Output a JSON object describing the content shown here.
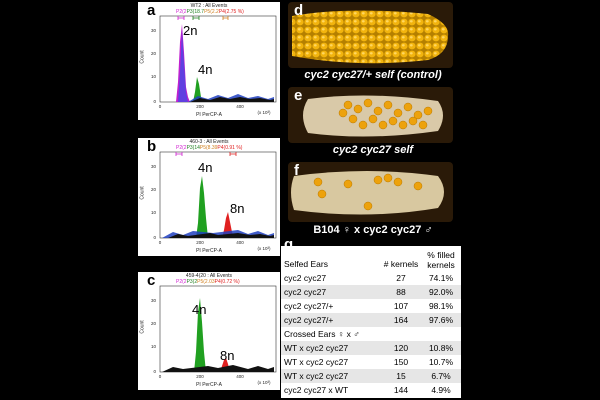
{
  "panels": {
    "a": {
      "letter": "a",
      "title": "WT2 : All Events",
      "xlabel": "PI PerCP-A",
      "ylabel": "Count",
      "peak1": "2n",
      "peak2": "4n",
      "gates": [
        {
          "t": "P2(2",
          "c": "#d020d0"
        },
        {
          "t": "P3(18.7",
          "c": "#208020"
        },
        {
          "t": "P5(2.2",
          "c": "#d08020"
        },
        {
          "t": "P4(2.75 %)",
          "c": "#e02020"
        }
      ],
      "yticks": [
        "30",
        "20",
        "10",
        "0"
      ],
      "xticks": [
        "0",
        "200",
        "400"
      ],
      "xunit": "(x 10³)"
    },
    "b": {
      "letter": "b",
      "title": "460-3 : All Events",
      "xlabel": "PI PerCP-A",
      "ylabel": "Count",
      "peak1": "4n",
      "peak2": "8n",
      "gates": [
        {
          "t": "P2(2",
          "c": "#d020d0"
        },
        {
          "t": "P3(14",
          "c": "#208020"
        },
        {
          "t": "P5(8.39",
          "c": "#d08020"
        },
        {
          "t": "P4(0.91 %)",
          "c": "#e02020"
        }
      ],
      "yticks": [
        "30",
        "20",
        "10",
        "0"
      ],
      "xticks": [
        "0",
        "200",
        "400"
      ],
      "xunit": "(x 10³)"
    },
    "c": {
      "letter": "c",
      "title": "459-4(20 : All Events",
      "xlabel": "PI PerCP-A",
      "ylabel": "Count",
      "peak1": "4n",
      "peak2": "8n",
      "gates": [
        {
          "t": "P2(2",
          "c": "#d020d0"
        },
        {
          "t": "P3(2",
          "c": "#208020"
        },
        {
          "t": "P5(2.03",
          "c": "#d08020"
        },
        {
          "t": "P4(0.72 %)",
          "c": "#e02020"
        }
      ],
      "yticks": [
        "30",
        "20",
        "10",
        "0"
      ],
      "xticks": [
        "0",
        "200",
        "400"
      ],
      "xunit": "(x 10³)"
    }
  },
  "ears": {
    "d": {
      "letter": "d",
      "caption": "cyc2 cyc27/+ self (control)"
    },
    "e": {
      "letter": "e",
      "caption": "cyc2 cyc27 self"
    },
    "f": {
      "letter": "f",
      "caption": "B104 ♀ x cyc2 cyc27 ♂"
    }
  },
  "table": {
    "letter": "g",
    "header": {
      "col1": "Selfed Ears",
      "col2": "# kernels",
      "col3": "% filled kernels"
    },
    "selfed": [
      {
        "line": "cyc2 cyc27",
        "n": "27",
        "pct": "74.1%"
      },
      {
        "line": "cyc2 cyc27",
        "n": "88",
        "pct": "92.0%"
      },
      {
        "line": "cyc2 cyc27/+",
        "n": "107",
        "pct": "98.1%"
      },
      {
        "line": "cyc2 cyc27/+",
        "n": "164",
        "pct": "97.6%"
      }
    ],
    "crossed_header": "Crossed Ears ♀ x ♂",
    "crossed": [
      {
        "line": "WT x cyc2 cyc27",
        "n": "120",
        "pct": "10.8%"
      },
      {
        "line": "WT x cyc2 cyc27",
        "n": "150",
        "pct": "10.7%"
      },
      {
        "line": "WT x cyc2 cyc27",
        "n": "15",
        "pct": "6.7%"
      },
      {
        "line": "cyc2 cyc27 x WT",
        "n": "144",
        "pct": "4.9%"
      }
    ]
  }
}
